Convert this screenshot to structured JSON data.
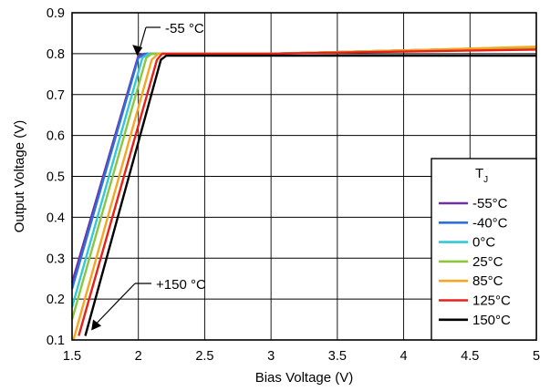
{
  "chart_data": {
    "type": "line",
    "xlabel": "Bias Voltage (V)",
    "ylabel": "Output Voltage (V)",
    "xlim": [
      1.5,
      5
    ],
    "ylim": [
      0.1,
      0.9
    ],
    "x_ticks": [
      "1.5",
      "2",
      "2.5",
      "3",
      "3.5",
      "4",
      "4.5",
      "5"
    ],
    "y_ticks": [
      "0.1",
      "0.2",
      "0.3",
      "0.4",
      "0.5",
      "0.6",
      "0.7",
      "0.8",
      "0.9"
    ],
    "grid": true,
    "legend": {
      "title_main": "T",
      "title_sub": "J",
      "placement": "bottom-right"
    },
    "annotations": [
      {
        "text": "-55 °C",
        "arrow_to": [
          1.99,
          0.795
        ]
      },
      {
        "text": "+150 °C",
        "arrow_to": [
          1.59,
          0.11
        ]
      }
    ],
    "series": [
      {
        "name": "-55°C",
        "color": "#7030A0",
        "points": [
          [
            1.5,
            0.24
          ],
          [
            2.0,
            0.795
          ],
          [
            2.05,
            0.8
          ],
          [
            3.0,
            0.8
          ],
          [
            4.0,
            0.808
          ],
          [
            5.0,
            0.815
          ]
        ]
      },
      {
        "name": "-40°C",
        "color": "#2E6FE0",
        "points": [
          [
            1.5,
            0.225
          ],
          [
            2.0,
            0.79
          ],
          [
            2.06,
            0.8
          ],
          [
            3.0,
            0.8
          ],
          [
            4.0,
            0.808
          ],
          [
            5.0,
            0.815
          ]
        ]
      },
      {
        "name": "0°C",
        "color": "#33C8D6",
        "points": [
          [
            1.5,
            0.18
          ],
          [
            2.03,
            0.79
          ],
          [
            2.08,
            0.8
          ],
          [
            3.0,
            0.8
          ],
          [
            4.0,
            0.808
          ],
          [
            5.0,
            0.815
          ]
        ]
      },
      {
        "name": "25°C",
        "color": "#8CC63F",
        "points": [
          [
            1.5,
            0.15
          ],
          [
            2.06,
            0.79
          ],
          [
            2.1,
            0.8
          ],
          [
            3.0,
            0.8
          ],
          [
            4.0,
            0.808
          ],
          [
            5.0,
            0.815
          ]
        ]
      },
      {
        "name": "85°C",
        "color": "#F5A623",
        "points": [
          [
            1.51,
            0.1
          ],
          [
            2.1,
            0.785
          ],
          [
            2.15,
            0.8
          ],
          [
            3.0,
            0.8
          ],
          [
            4.0,
            0.808
          ],
          [
            5.0,
            0.817
          ]
        ]
      },
      {
        "name": "125°C",
        "color": "#E8201A",
        "points": [
          [
            1.55,
            0.11
          ],
          [
            2.14,
            0.785
          ],
          [
            2.18,
            0.8
          ],
          [
            3.0,
            0.8
          ],
          [
            4.0,
            0.805
          ],
          [
            5.0,
            0.81
          ]
        ]
      },
      {
        "name": "150°C",
        "color": "#000000",
        "points": [
          [
            1.6,
            0.11
          ],
          [
            2.17,
            0.785
          ],
          [
            2.21,
            0.795
          ],
          [
            3.0,
            0.795
          ],
          [
            4.0,
            0.795
          ],
          [
            5.0,
            0.795
          ]
        ]
      }
    ]
  }
}
